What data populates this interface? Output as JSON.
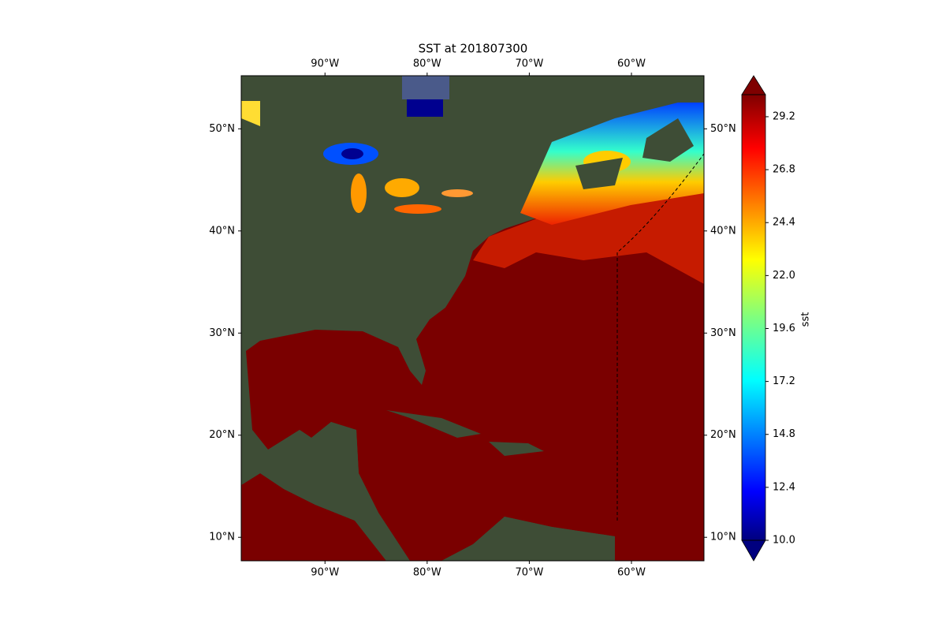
{
  "chart_data": {
    "type": "map",
    "title": "SST at 201807300",
    "xlim": [
      -98.2,
      -52.9
    ],
    "ylim": [
      7.7,
      55.2
    ],
    "xticks": [
      {
        "value": -90,
        "label": "90°W"
      },
      {
        "value": -80,
        "label": "80°W"
      },
      {
        "value": -70,
        "label": "70°W"
      },
      {
        "value": -60,
        "label": "60°W"
      }
    ],
    "yticks": [
      {
        "value": 10,
        "label": "10°N"
      },
      {
        "value": 20,
        "label": "20°N"
      },
      {
        "value": 30,
        "label": "30°N"
      },
      {
        "value": 40,
        "label": "40°N"
      },
      {
        "value": 50,
        "label": "50°N"
      }
    ],
    "colorbar": {
      "label": "sst",
      "clim": [
        10,
        30.2
      ],
      "colormap": "jet",
      "ticks": [
        {
          "value": 10,
          "label": "10.0"
        },
        {
          "value": 12.4,
          "label": "12.4"
        },
        {
          "value": 14.8,
          "label": "14.8"
        },
        {
          "value": 17.2,
          "label": "17.2"
        },
        {
          "value": 19.6,
          "label": "19.6"
        },
        {
          "value": 22,
          "label": "22.0"
        },
        {
          "value": 24.4,
          "label": "24.4"
        },
        {
          "value": 26.8,
          "label": "26.8"
        },
        {
          "value": 29.2,
          "label": "29.2"
        }
      ]
    }
  }
}
